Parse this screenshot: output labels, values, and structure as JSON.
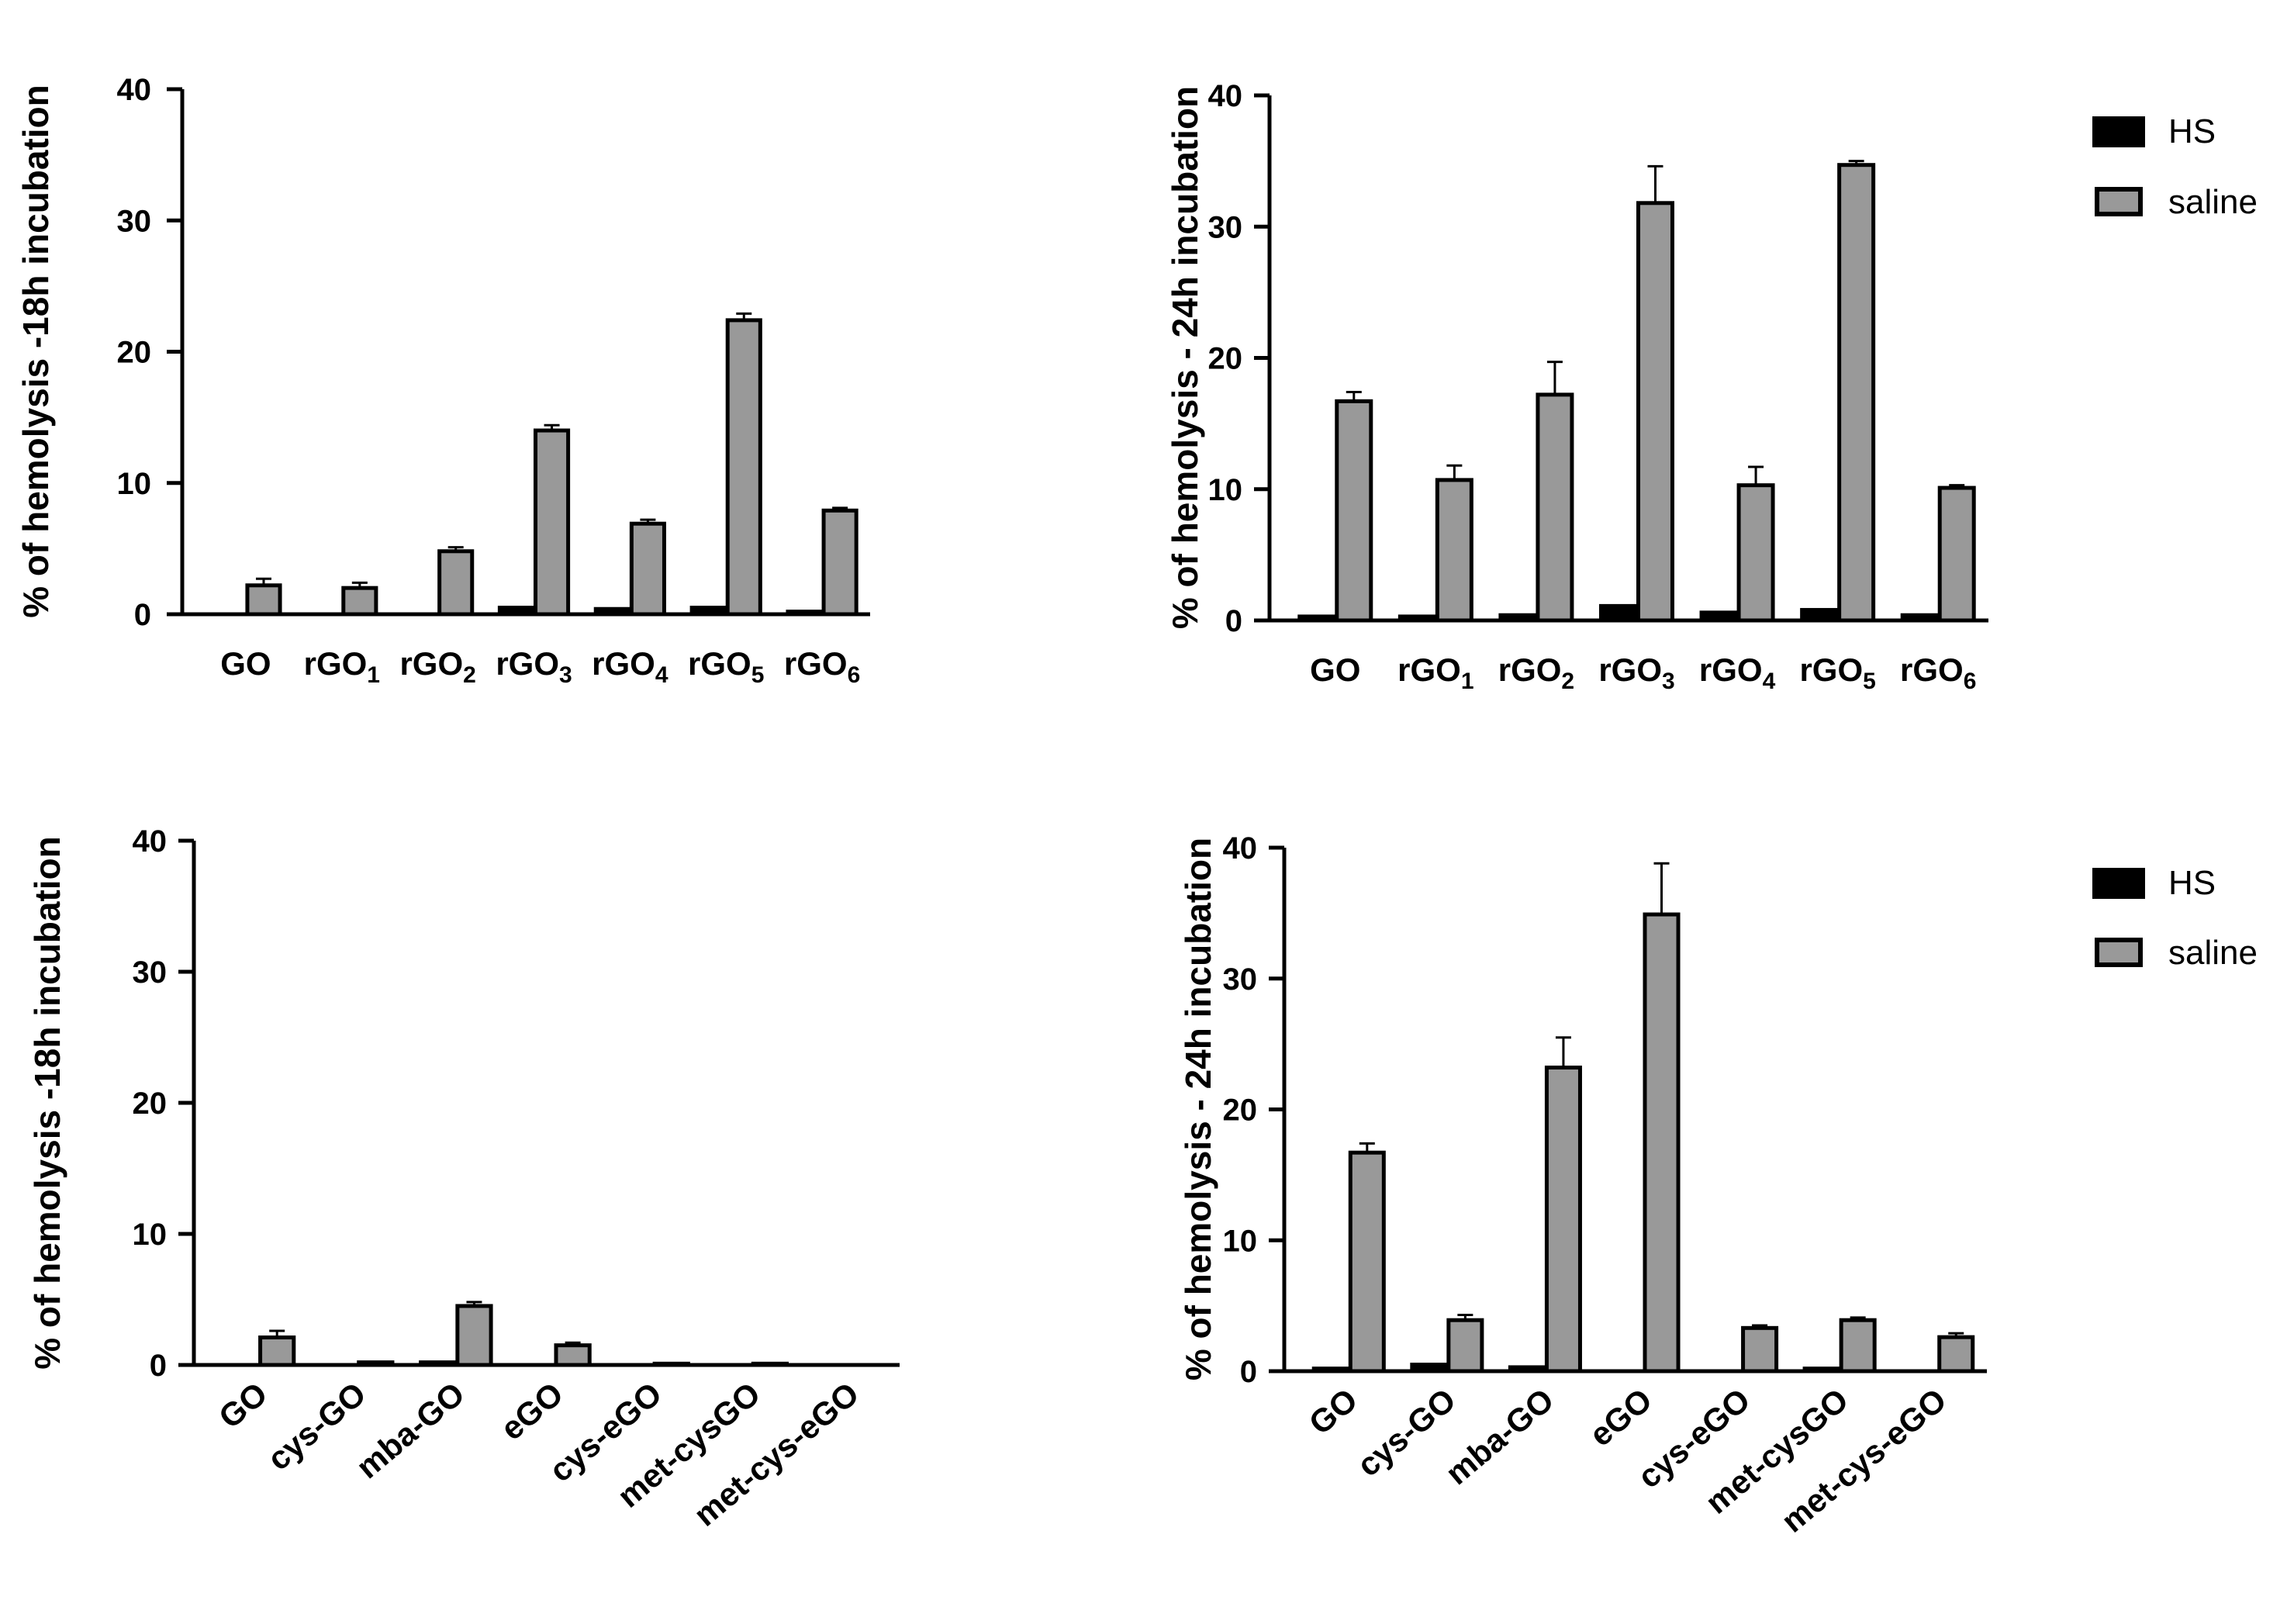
{
  "legend": {
    "entries": [
      "HS",
      "saline"
    ],
    "colors": {
      "HS": "#000000",
      "saline": "#999999"
    }
  },
  "chart_data": [
    {
      "id": "a",
      "type": "bar",
      "title": "",
      "ylabel": "% of hemolysis -18h incubation",
      "xlabel": "",
      "ylim": [
        0,
        40
      ],
      "yticks": [
        0,
        10,
        20,
        30,
        40
      ],
      "categories": [
        {
          "base": "GO",
          "sub": ""
        },
        {
          "base": "rGO",
          "sub": "1"
        },
        {
          "base": "rGO",
          "sub": "2"
        },
        {
          "base": "rGO",
          "sub": "3"
        },
        {
          "base": "rGO",
          "sub": "4"
        },
        {
          "base": "rGO",
          "sub": "5"
        },
        {
          "base": "rGO",
          "sub": "6"
        }
      ],
      "series": [
        {
          "name": "HS",
          "values": [
            0.0,
            0.0,
            0.0,
            0.5,
            0.4,
            0.5,
            0.2
          ],
          "errors": [
            0,
            0,
            0,
            0,
            0,
            0,
            0
          ]
        },
        {
          "name": "saline",
          "values": [
            2.2,
            2.0,
            4.8,
            14.0,
            6.9,
            22.4,
            7.9
          ],
          "errors": [
            0.5,
            0.4,
            0.3,
            0.4,
            0.3,
            0.5,
            0.2
          ]
        }
      ],
      "rotated_labels": false
    },
    {
      "id": "b",
      "type": "bar",
      "title": "",
      "ylabel": "% of hemolysis - 24h incubation",
      "xlabel": "",
      "ylim": [
        0,
        40
      ],
      "yticks": [
        0,
        10,
        20,
        30,
        40
      ],
      "categories": [
        {
          "base": "GO",
          "sub": ""
        },
        {
          "base": "rGO",
          "sub": "1"
        },
        {
          "base": "rGO",
          "sub": "2"
        },
        {
          "base": "rGO",
          "sub": "3"
        },
        {
          "base": "rGO",
          "sub": "4"
        },
        {
          "base": "rGO",
          "sub": "5"
        },
        {
          "base": "rGO",
          "sub": "6"
        }
      ],
      "series": [
        {
          "name": "HS",
          "values": [
            0.3,
            0.3,
            0.4,
            1.1,
            0.6,
            0.8,
            0.4
          ],
          "errors": [
            0,
            0,
            0,
            0,
            0,
            0,
            0
          ]
        },
        {
          "name": "saline",
          "values": [
            16.7,
            10.7,
            17.2,
            31.8,
            10.3,
            34.7,
            10.1
          ],
          "errors": [
            0.7,
            1.1,
            2.5,
            2.8,
            1.4,
            0.3,
            0.2
          ]
        }
      ],
      "rotated_labels": false
    },
    {
      "id": "c",
      "type": "bar",
      "title": "",
      "ylabel": "% of hemolysis -18h incubation",
      "xlabel": "",
      "ylim": [
        0,
        40
      ],
      "yticks": [
        0,
        10,
        20,
        30,
        40
      ],
      "categories": [
        {
          "base": "GO",
          "sub": ""
        },
        {
          "base": "cys-GO",
          "sub": ""
        },
        {
          "base": "mba-GO",
          "sub": ""
        },
        {
          "base": "eGO",
          "sub": ""
        },
        {
          "base": "cys-eGO",
          "sub": ""
        },
        {
          "base": "met-cysGO",
          "sub": ""
        },
        {
          "base": "met-cys-eGO",
          "sub": ""
        }
      ],
      "series": [
        {
          "name": "HS",
          "values": [
            0.0,
            0.0,
            0.2,
            0.0,
            0.0,
            0.0,
            0.0
          ],
          "errors": [
            0,
            0,
            0,
            0,
            0,
            0,
            0
          ]
        },
        {
          "name": "saline",
          "values": [
            2.1,
            0.2,
            4.5,
            1.5,
            0.1,
            0.1,
            0.0
          ],
          "errors": [
            0.5,
            0,
            0.3,
            0.2,
            0,
            0,
            0
          ]
        }
      ],
      "rotated_labels": true
    },
    {
      "id": "d",
      "type": "bar",
      "title": "",
      "ylabel": "% of hemolysis - 24h incubation",
      "xlabel": "",
      "ylim": [
        0,
        40
      ],
      "yticks": [
        0,
        10,
        20,
        30,
        40
      ],
      "categories": [
        {
          "base": "GO",
          "sub": ""
        },
        {
          "base": "cys-GO",
          "sub": ""
        },
        {
          "base": "mba-GO",
          "sub": ""
        },
        {
          "base": "eGO",
          "sub": ""
        },
        {
          "base": "cys-eGO",
          "sub": ""
        },
        {
          "base": "met-cysGO",
          "sub": ""
        },
        {
          "base": "met-cys-eGO",
          "sub": ""
        }
      ],
      "series": [
        {
          "name": "HS",
          "values": [
            0.2,
            0.5,
            0.3,
            0.0,
            0.0,
            0.2,
            0.0
          ],
          "errors": [
            0,
            0,
            0,
            0,
            0,
            0,
            0
          ]
        },
        {
          "name": "saline",
          "values": [
            16.7,
            3.9,
            23.2,
            34.9,
            3.3,
            3.9,
            2.6
          ],
          "errors": [
            0.7,
            0.4,
            2.3,
            3.9,
            0.2,
            0.2,
            0.3
          ]
        }
      ],
      "rotated_labels": true
    }
  ]
}
